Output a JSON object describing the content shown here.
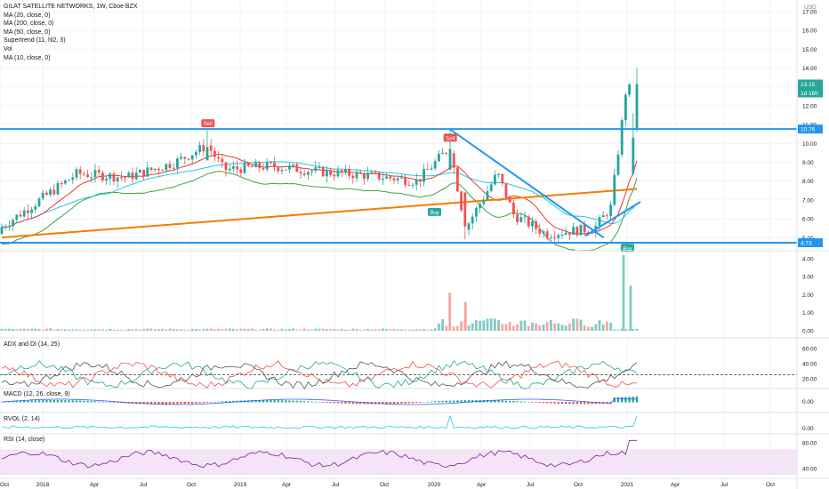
{
  "header": {
    "title": "GILAT SATELLITE NETWORKS, 1W, Cboe BZX",
    "indicators": [
      "MA (20, close, 0)",
      "MA (200, close, 0)",
      "MA (50, close, 0)",
      "Supertrend (11, hl2, 3)",
      "Vol",
      "MA (10, close, 0)"
    ],
    "currency": "USD"
  },
  "badges": {
    "last_price": "13.15",
    "countdown": "1d 16h",
    "upper_level": "10.76",
    "lower_level": "4.73"
  },
  "signals": {
    "sell": "Sell",
    "buy": "Buy"
  },
  "panes": {
    "adx": "ADX and DI (14, 25)",
    "macd": "MACD (12, 26, close, 9)",
    "rvol": "RVOL (2, 14)",
    "rsi": "RSI (14, close)"
  },
  "colors": {
    "up": "#26a69a",
    "down": "#ef5350",
    "ma200": "#f57c00",
    "ma50": "#26c6da",
    "ma20": "#e53935",
    "trendline": "#2196f3",
    "supertrend_up": "#43a047",
    "supertrend_down": "#e53935",
    "rsi": "#7b1fa2",
    "rsi_band": "#f3e5f5"
  },
  "chart_data": [
    {
      "type": "candlestick",
      "title": "GILAT SATELLITE NETWORKS, 1W, Cboe BZX",
      "ylim": [
        4.5,
        17.5
      ],
      "yticks": [
        "17.00",
        "16.00",
        "15.00",
        "14.00",
        "13.00",
        "12.00",
        "11.00",
        "10.00",
        "9.00",
        "8.00",
        "7.00",
        "6.00",
        "5.00"
      ],
      "xticks": [
        "Oct",
        "2018",
        "Apr",
        "Jul",
        "Oct",
        "2019",
        "Apr",
        "Jul",
        "Oct",
        "2020",
        "Apr",
        "Jul",
        "Oct",
        "2021",
        "Apr",
        "Jul",
        "Oct"
      ],
      "horizontal_levels": [
        10.76,
        4.73
      ],
      "last_price": 13.15,
      "key_points": [
        {
          "date": "2017-10",
          "close": 5.5
        },
        {
          "date": "2018-03",
          "close": 8.4
        },
        {
          "date": "2018-06",
          "close": 8.2
        },
        {
          "date": "2018-09",
          "close": 9.0
        },
        {
          "date": "2018-11",
          "high": 10.7,
          "close": 9.9
        },
        {
          "date": "2018-12",
          "close": 8.6
        },
        {
          "date": "2019-03",
          "close": 8.8
        },
        {
          "date": "2019-06",
          "close": 8.5
        },
        {
          "date": "2019-09",
          "close": 8.3
        },
        {
          "date": "2019-12",
          "close": 8.0
        },
        {
          "date": "2020-02",
          "high": 10.76,
          "close": 9.8
        },
        {
          "date": "2020-03",
          "low": 4.9,
          "close": 5.5
        },
        {
          "date": "2020-05",
          "close": 8.4
        },
        {
          "date": "2020-06",
          "close": 6.2
        },
        {
          "date": "2020-08",
          "close": 5.2
        },
        {
          "date": "2020-11",
          "close": 5.5
        },
        {
          "date": "2020-12",
          "close": 6.6
        },
        {
          "date": "2021-01",
          "high": 14.0,
          "close": 13.15
        }
      ],
      "signals": [
        {
          "label": "Sell",
          "date": "2018-11"
        },
        {
          "label": "Sell",
          "date": "2020-02"
        },
        {
          "label": "Buy",
          "date": "2020-01"
        },
        {
          "label": "Buy",
          "date": "2021-01"
        }
      ]
    },
    {
      "type": "bar",
      "title": "Vol",
      "ylim": [
        0,
        4.4
      ],
      "yticks": [
        "4.00",
        "3.00",
        "2.00",
        "1.00",
        "0.00"
      ],
      "peaks": [
        {
          "date": "2020-02",
          "value": 2.1
        },
        {
          "date": "2020-03",
          "value": 1.6
        },
        {
          "date": "2021-01",
          "value": 4.2
        },
        {
          "date": "2021-01",
          "value": 2.5
        }
      ]
    },
    {
      "type": "line",
      "title": "ADX and DI (14, 25)",
      "ylim": [
        5,
        68
      ],
      "yticks": [
        "60.00",
        "40.00",
        "20.00"
      ],
      "reference": 25
    },
    {
      "type": "bar",
      "title": "MACD (12, 26, close, 9)",
      "yticks": [
        "0.00"
      ]
    },
    {
      "type": "line",
      "title": "RVOL (2, 14)",
      "yticks": [
        "0.00"
      ]
    },
    {
      "type": "line",
      "title": "RSI (14, close)",
      "ylim": [
        25,
        90
      ],
      "yticks": [
        "80.00",
        "40.00"
      ],
      "band": [
        30,
        70
      ]
    }
  ]
}
